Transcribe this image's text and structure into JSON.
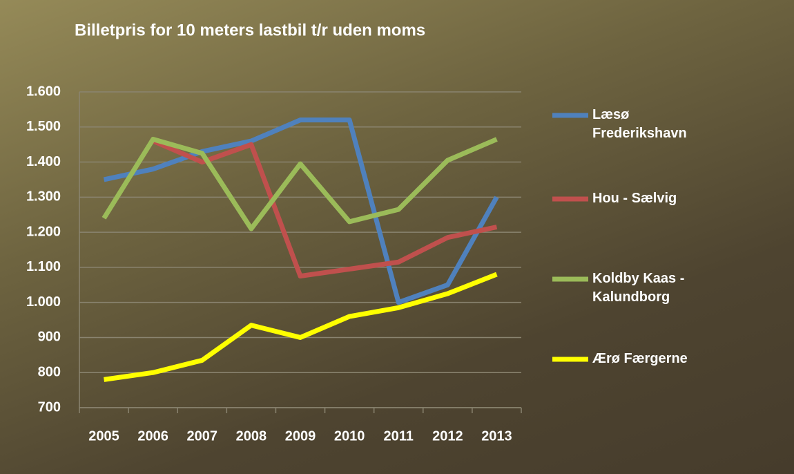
{
  "chart_data": {
    "type": "line",
    "title": "Billetpris for 10 meters lastbil t/r uden moms",
    "categories": [
      "2005",
      "2006",
      "2007",
      "2008",
      "2009",
      "2010",
      "2011",
      "2012",
      "2013"
    ],
    "series": [
      {
        "name": "Læsø Frederikshavn",
        "color": "#4f81bd",
        "values": [
          1350,
          1380,
          1430,
          1460,
          1520,
          1520,
          1000,
          1050,
          1300
        ]
      },
      {
        "name": "Hou - Sælvig",
        "color": "#c0504d",
        "values": [
          null,
          1460,
          1400,
          1450,
          1075,
          1095,
          1115,
          1185,
          1215
        ]
      },
      {
        "name": "Koldby Kaas - Kalundborg",
        "color": "#9bbb59",
        "values": [
          1240,
          1465,
          1425,
          1210,
          1395,
          1230,
          1265,
          1405,
          1465
        ]
      },
      {
        "name": "Ærø Færgerne",
        "color": "#ffff00",
        "values": [
          780,
          800,
          835,
          935,
          900,
          960,
          985,
          1025,
          1080
        ]
      }
    ],
    "ylim": [
      700,
      1600
    ],
    "yticks": [
      700,
      800,
      900,
      {
        "value": 1000,
        "label": "1.000"
      },
      {
        "value": 1100,
        "label": "1.100"
      },
      {
        "value": 1200,
        "label": "1.200"
      },
      {
        "value": 1300,
        "label": "1.300"
      },
      {
        "value": 1400,
        "label": "1.400"
      },
      {
        "value": 1500,
        "label": "1.500"
      },
      {
        "value": 1600,
        "label": "1.600"
      }
    ],
    "grid": true,
    "legend": "right"
  }
}
